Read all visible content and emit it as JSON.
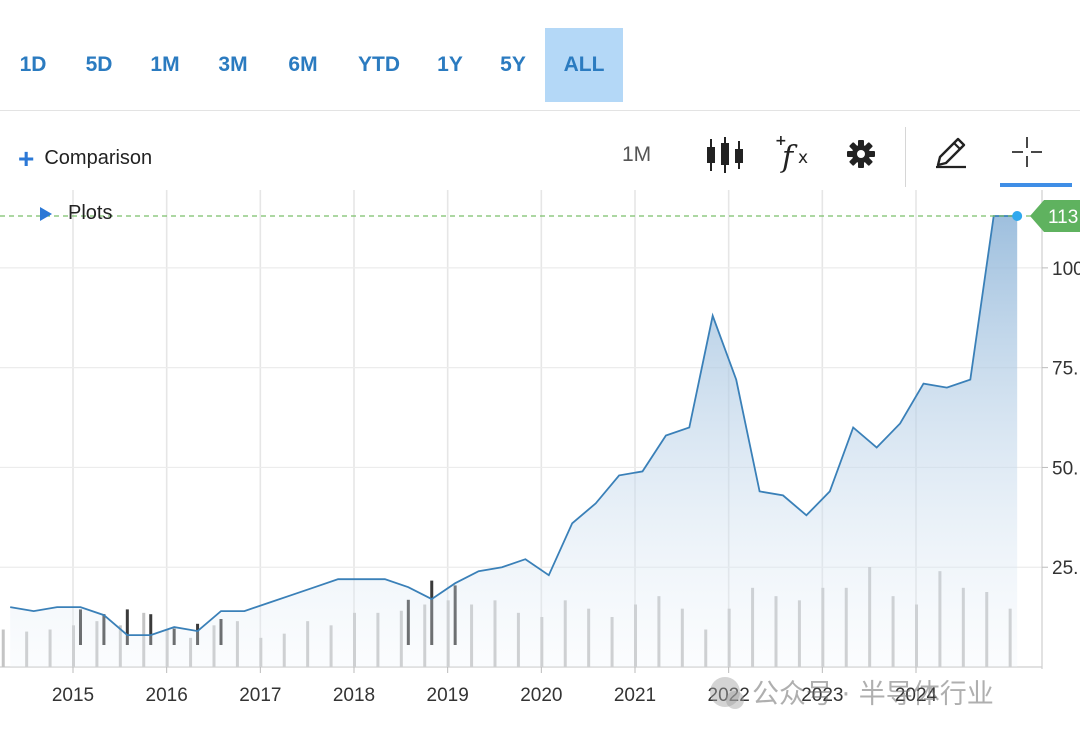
{
  "range_tabs": [
    "1D",
    "5D",
    "1M",
    "3M",
    "6M",
    "YTD",
    "1Y",
    "5Y",
    "ALL"
  ],
  "active_range": "ALL",
  "toolbar": {
    "comparison_label": "Comparison",
    "interval_label": "1M",
    "icons": [
      "candlestick-icon",
      "fx-icon",
      "gear-icon",
      "pencil-icon",
      "crosshair-icon"
    ]
  },
  "plots_label": "Plots",
  "colors": {
    "line": "#3a80b8",
    "accent": "#2b7bc0",
    "last_price_badge": "#5fb25f",
    "volume_up": "#c4c4c4",
    "volume_down": "#3a3a3a"
  },
  "watermark": "公众号 · 半导体行业",
  "chart_data": {
    "type": "area",
    "title": "",
    "xlabel": "",
    "ylabel": "",
    "x_ticks": [
      "2015",
      "2016",
      "2017",
      "2018",
      "2019",
      "2020",
      "2021",
      "2022",
      "2023",
      "2024"
    ],
    "y_ticks": [
      "25.",
      "50.",
      "75.",
      "100"
    ],
    "y_range": [
      0,
      114
    ],
    "last_price_label": "113",
    "last_price": 113,
    "grid": true,
    "x": [
      2014.33,
      2014.58,
      2014.83,
      2015.08,
      2015.33,
      2015.58,
      2015.83,
      2016.08,
      2016.33,
      2016.58,
      2016.83,
      2017.08,
      2017.33,
      2017.58,
      2017.83,
      2018.08,
      2018.33,
      2018.58,
      2018.83,
      2019.08,
      2019.33,
      2019.58,
      2019.83,
      2020.08,
      2020.33,
      2020.58,
      2020.83,
      2021.08,
      2021.33,
      2021.58,
      2021.83,
      2022.08,
      2022.33,
      2022.58,
      2022.83,
      2023.08,
      2023.33,
      2023.58,
      2023.83,
      2024.08,
      2024.33,
      2024.58,
      2024.83,
      2025.08
    ],
    "price": [
      15,
      14,
      15,
      15,
      13,
      8,
      8,
      10,
      9,
      14,
      14,
      16,
      18,
      20,
      22,
      22,
      22,
      20,
      17,
      21,
      24,
      25,
      27,
      23,
      36,
      41,
      48,
      49,
      58,
      60,
      88,
      72,
      44,
      43,
      38,
      44,
      60,
      55,
      61,
      71,
      70,
      72,
      113,
      113
    ],
    "volume": [
      9,
      8.5,
      9,
      10,
      11,
      10,
      13,
      9,
      7,
      10,
      11,
      7,
      8,
      11,
      10,
      13,
      13,
      13.5,
      15,
      16,
      15,
      16,
      13,
      12,
      16,
      14,
      12,
      15,
      17,
      14,
      9,
      14,
      19,
      17,
      16,
      19,
      19,
      24,
      17,
      15,
      23,
      19,
      18,
      14
    ],
    "volume_down_markers": [
      [
        2015.08,
        12
      ],
      [
        2015.33,
        11
      ],
      [
        2015.58,
        12
      ],
      [
        2015.83,
        11
      ],
      [
        2016.08,
        8
      ],
      [
        2016.33,
        9
      ],
      [
        2016.58,
        10
      ],
      [
        2018.58,
        14
      ],
      [
        2018.83,
        18
      ],
      [
        2019.08,
        17
      ]
    ]
  }
}
